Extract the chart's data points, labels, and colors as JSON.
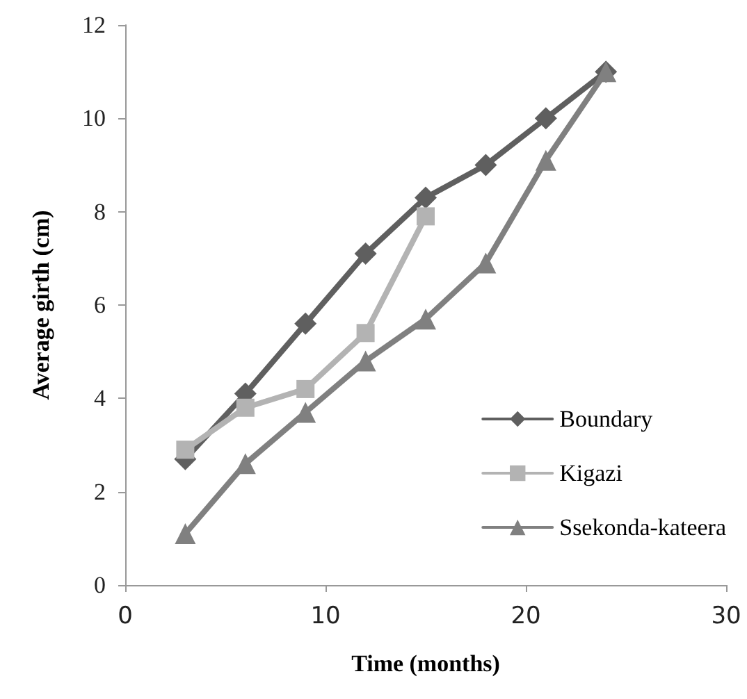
{
  "chart_data": {
    "type": "line",
    "xlabel": "Time (months)",
    "ylabel": "Average girth (cm)",
    "xlim": [
      0,
      30
    ],
    "xticks": [
      0,
      10,
      20,
      30
    ],
    "ylim": [
      0,
      12
    ],
    "yticks": [
      0,
      2,
      4,
      6,
      8,
      10,
      12
    ],
    "grid": false,
    "legend": "bottom right",
    "line_style": "solid",
    "x": [
      3,
      6,
      9,
      12,
      15,
      18,
      21,
      24
    ],
    "series": [
      {
        "name": "Boundary",
        "color": "#5f5f5f",
        "marker": "diamond",
        "values": [
          2.7,
          4.1,
          5.6,
          7.1,
          8.3,
          9.0,
          10.0,
          11.0
        ]
      },
      {
        "name": "Kigazi",
        "color": "#b3b3b3",
        "marker": "square",
        "values": [
          2.9,
          3.8,
          4.2,
          5.4,
          7.9,
          null,
          null,
          null
        ]
      },
      {
        "name": "Ssekonda-kateera",
        "color": "#808080",
        "marker": "triangle",
        "values": [
          1.1,
          2.6,
          3.7,
          4.8,
          5.7,
          6.9,
          9.1,
          11.0
        ]
      }
    ]
  }
}
